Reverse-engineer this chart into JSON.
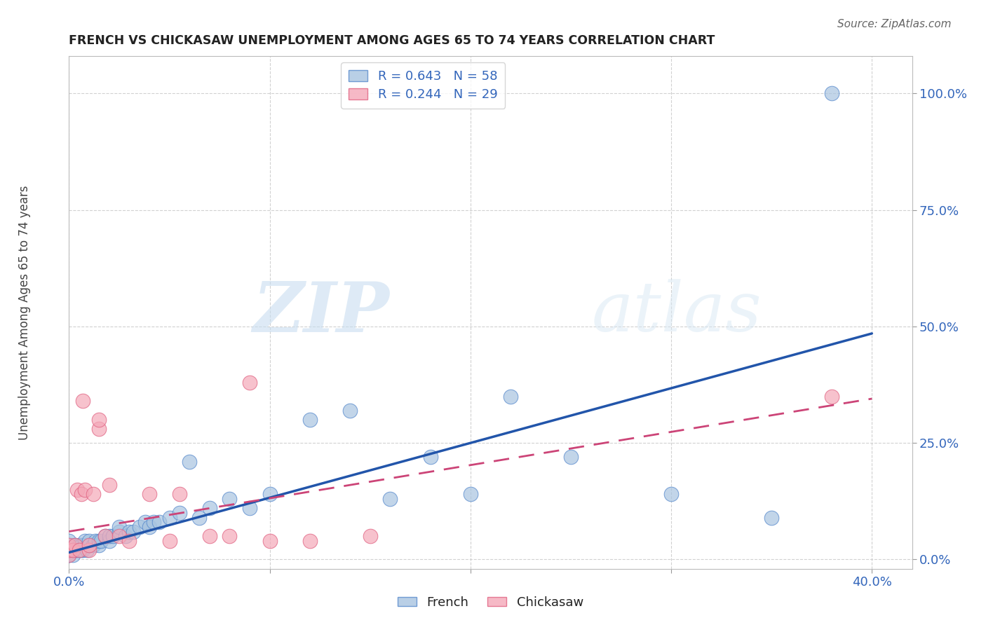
{
  "title": "FRENCH VS CHICKASAW UNEMPLOYMENT AMONG AGES 65 TO 74 YEARS CORRELATION CHART",
  "source": "Source: ZipAtlas.com",
  "ylabel": "Unemployment Among Ages 65 to 74 years",
  "xlim": [
    0.0,
    0.42
  ],
  "ylim": [
    -0.02,
    1.08
  ],
  "yticks": [
    0.0,
    0.25,
    0.5,
    0.75,
    1.0
  ],
  "ytick_labels": [
    "0.0%",
    "25.0%",
    "50.0%",
    "75.0%",
    "100.0%"
  ],
  "xticks": [
    0.0,
    0.4
  ],
  "xtick_labels": [
    "0.0%",
    "40.0%"
  ],
  "french_R": 0.643,
  "french_N": 58,
  "chickasaw_R": 0.244,
  "chickasaw_N": 29,
  "french_color": "#a8c4e0",
  "chickasaw_color": "#f4a8b8",
  "french_edge_color": "#5588cc",
  "chickasaw_edge_color": "#e06080",
  "french_line_color": "#2255aa",
  "chickasaw_line_color": "#cc4477",
  "watermark_zip": "ZIP",
  "watermark_atlas": "atlas",
  "french_points_x": [
    0.0,
    0.0,
    0.0,
    0.0,
    0.0,
    0.0,
    0.002,
    0.002,
    0.003,
    0.003,
    0.004,
    0.005,
    0.005,
    0.006,
    0.006,
    0.007,
    0.008,
    0.008,
    0.009,
    0.01,
    0.01,
    0.012,
    0.013,
    0.015,
    0.015,
    0.016,
    0.018,
    0.02,
    0.02,
    0.022,
    0.025,
    0.025,
    0.028,
    0.03,
    0.032,
    0.035,
    0.038,
    0.04,
    0.042,
    0.045,
    0.05,
    0.055,
    0.06,
    0.065,
    0.07,
    0.08,
    0.09,
    0.1,
    0.12,
    0.14,
    0.16,
    0.18,
    0.2,
    0.22,
    0.25,
    0.3,
    0.35,
    0.38
  ],
  "french_points_y": [
    0.01,
    0.01,
    0.02,
    0.02,
    0.03,
    0.04,
    0.01,
    0.02,
    0.02,
    0.03,
    0.02,
    0.02,
    0.03,
    0.02,
    0.03,
    0.02,
    0.03,
    0.04,
    0.02,
    0.03,
    0.04,
    0.03,
    0.04,
    0.03,
    0.04,
    0.04,
    0.05,
    0.04,
    0.05,
    0.05,
    0.06,
    0.07,
    0.05,
    0.06,
    0.06,
    0.07,
    0.08,
    0.07,
    0.08,
    0.08,
    0.09,
    0.1,
    0.21,
    0.09,
    0.11,
    0.13,
    0.11,
    0.14,
    0.3,
    0.32,
    0.13,
    0.22,
    0.14,
    0.35,
    0.22,
    0.14,
    0.09,
    1.0
  ],
  "chickasaw_points_x": [
    0.0,
    0.0,
    0.0,
    0.002,
    0.003,
    0.004,
    0.005,
    0.006,
    0.007,
    0.008,
    0.01,
    0.01,
    0.012,
    0.015,
    0.015,
    0.018,
    0.02,
    0.025,
    0.03,
    0.04,
    0.05,
    0.055,
    0.07,
    0.08,
    0.09,
    0.1,
    0.12,
    0.15,
    0.38
  ],
  "chickasaw_points_y": [
    0.01,
    0.02,
    0.03,
    0.02,
    0.03,
    0.15,
    0.02,
    0.14,
    0.34,
    0.15,
    0.02,
    0.03,
    0.14,
    0.28,
    0.3,
    0.05,
    0.16,
    0.05,
    0.04,
    0.14,
    0.04,
    0.14,
    0.05,
    0.05,
    0.38,
    0.04,
    0.04,
    0.05,
    0.35
  ],
  "french_trend_x0": 0.0,
  "french_trend_x1": 0.4,
  "french_trend_y0": 0.015,
  "french_trend_y1": 0.485,
  "chickasaw_trend_x0": 0.0,
  "chickasaw_trend_x1": 0.4,
  "chickasaw_trend_y0": 0.06,
  "chickasaw_trend_y1": 0.345
}
